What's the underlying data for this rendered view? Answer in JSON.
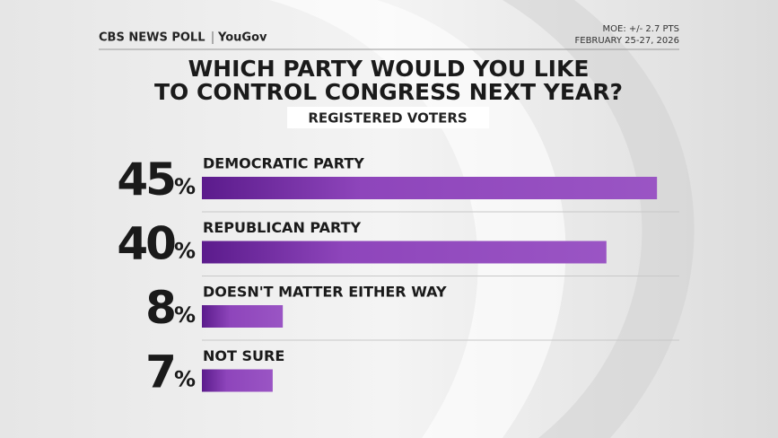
{
  "header": {
    "brand": "CBS NEWS POLL",
    "partner": "YouGov",
    "moe": "MOE: +/- 2.7 PTS",
    "date": "FEBRUARY 25-27, 2026"
  },
  "chart_data": {
    "type": "bar",
    "orientation": "horizontal",
    "title_lines": [
      "WHICH PARTY WOULD YOU LIKE",
      "TO CONTROL CONGRESS NEXT YEAR?"
    ],
    "subtitle": "REGISTERED VOTERS",
    "categories": [
      "DEMOCRATIC PARTY",
      "REPUBLICAN PARTY",
      "DOESN'T MATTER EITHER WAY",
      "NOT SURE"
    ],
    "values": [
      45,
      40,
      8,
      7
    ],
    "value_labels": [
      "45%",
      "40%",
      "8%",
      "7%"
    ],
    "color": "#7b2fae"
  }
}
